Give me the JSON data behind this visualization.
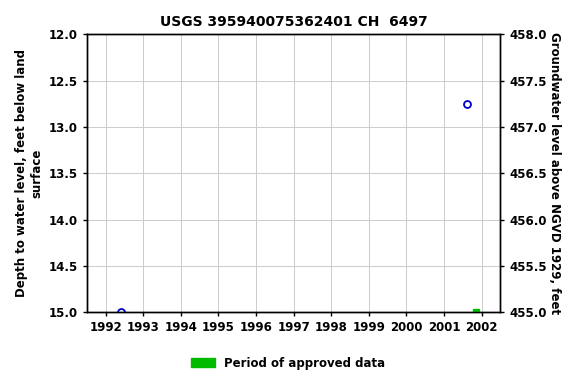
{
  "title": "USGS 395940075362401 CH  6497",
  "ylabel_left": "Depth to water level, feet below land\nsurface",
  "ylabel_right": "Groundwater level above NGVD 1929, feet",
  "ylim_left": [
    15.0,
    12.0
  ],
  "ylim_right": [
    455.0,
    458.0
  ],
  "xlim": [
    1991.5,
    2002.5
  ],
  "xticks": [
    1992,
    1993,
    1994,
    1995,
    1996,
    1997,
    1998,
    1999,
    2000,
    2001,
    2002
  ],
  "yticks_left": [
    12.0,
    12.5,
    13.0,
    13.5,
    14.0,
    14.5,
    15.0
  ],
  "yticks_right": [
    455.0,
    455.5,
    456.0,
    456.5,
    457.0,
    457.5,
    458.0
  ],
  "blue_circle_points": [
    [
      1992.4,
      15.0
    ],
    [
      2001.6,
      12.75
    ]
  ],
  "green_square_points": [
    [
      2001.85,
      15.0
    ]
  ],
  "legend_label": "Period of approved data",
  "legend_color": "#00bb00",
  "background_color": "#ffffff",
  "grid_color": "#cccccc",
  "point_color_blue": "#0000cc",
  "point_color_green": "#00bb00",
  "title_fontsize": 10,
  "axis_label_fontsize": 8.5,
  "tick_fontsize": 8.5
}
